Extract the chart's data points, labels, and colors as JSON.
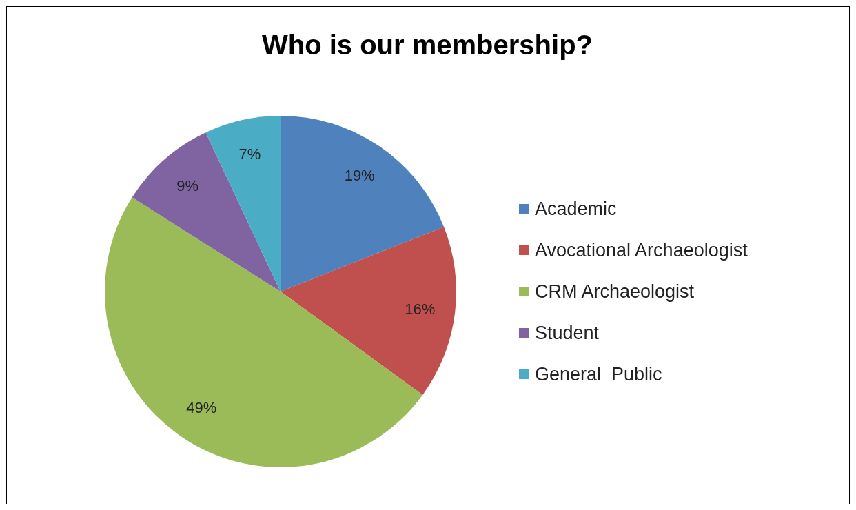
{
  "chart_data": {
    "type": "pie",
    "title": "Who is our membership?",
    "categories": [
      "Academic",
      "Avocational Archaeologist",
      "CRM Archaeologist",
      "Student",
      "General  Public"
    ],
    "values": [
      19,
      16,
      49,
      9,
      7
    ],
    "colors": [
      "#4f81bd",
      "#c0504d",
      "#9bbb59",
      "#8064a2",
      "#4bacc6"
    ],
    "value_labels": [
      "19%",
      "16%",
      "49%",
      "9%",
      "7%"
    ],
    "legend": "right"
  }
}
